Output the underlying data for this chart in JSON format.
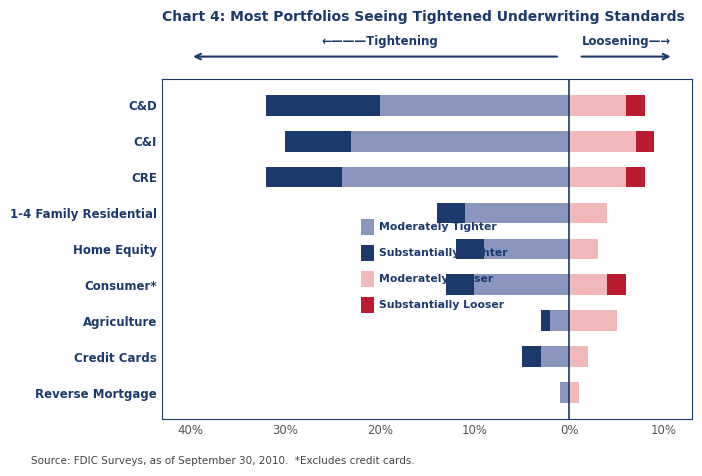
{
  "title": "Chart 4: Most Portfolios Seeing Tightened Underwriting Standards",
  "categories": [
    "Reverse Mortgage",
    "Credit Cards",
    "Agriculture",
    "Consumer*",
    "Home Equity",
    "1-4 Family Residential",
    "CRE",
    "C&I",
    "C&D"
  ],
  "mod_tighter": [
    1,
    3,
    2,
    10,
    9,
    11,
    24,
    23,
    20
  ],
  "sub_tighter": [
    0,
    2,
    1,
    3,
    3,
    3,
    8,
    7,
    12
  ],
  "mod_looser": [
    1,
    2,
    5,
    4,
    3,
    4,
    6,
    7,
    6
  ],
  "sub_looser": [
    0,
    0,
    0,
    2,
    0,
    0,
    2,
    2,
    2
  ],
  "color_mod_tighter": "#8B96BE",
  "color_sub_tighter": "#1B3A6B",
  "color_mod_looser": "#F0B8B8",
  "color_sub_looser": "#B81C2E",
  "xlim_left": -43,
  "xlim_right": 13,
  "xticks": [
    -40,
    -30,
    -20,
    -10,
    0,
    10
  ],
  "xticklabels": [
    "40%",
    "30%",
    "20%",
    "10%",
    "0%",
    "10%"
  ],
  "label_color": "#1B3A6B",
  "source_text": "Source: FDIC Surveys, as of September 30, 2010.  *Excludes credit cards.",
  "legend_labels": [
    "Moderately Tighter",
    "Substantially Tighter",
    "Moderately Looser",
    "Substantially Looser"
  ],
  "tightening_label": "←———Tightening",
  "loosening_label": "Loosening—→",
  "background_color": "#FFFFFF",
  "border_color": "#1B3A6B",
  "fig_border_color": "#1B3A6B"
}
